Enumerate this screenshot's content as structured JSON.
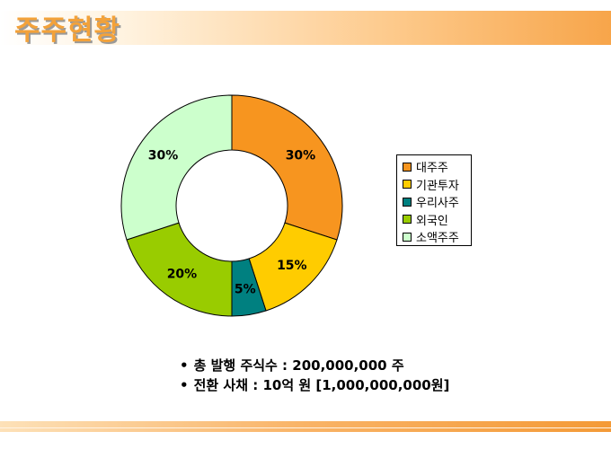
{
  "header": {
    "title": "주주현황"
  },
  "chart_data": {
    "type": "pie",
    "donut": true,
    "categories": [
      "대주주",
      "기관투자",
      "우리사주",
      "외국인",
      "소액주주"
    ],
    "values": [
      30,
      15,
      5,
      20,
      30
    ],
    "value_labels": [
      "30%",
      "15%",
      "5%",
      "20%",
      "30%"
    ],
    "colors": [
      "#f7951f",
      "#ffcc00",
      "#008080",
      "#99cc00",
      "#ccffcc"
    ],
    "legend_position": "right"
  },
  "notes": [
    {
      "bullet": "•",
      "text": "총 발행 주식수 : 200,000,000 주"
    },
    {
      "bullet": "•",
      "text": "전환 사채 : 10억 원 [1,000,000,000원]"
    }
  ]
}
